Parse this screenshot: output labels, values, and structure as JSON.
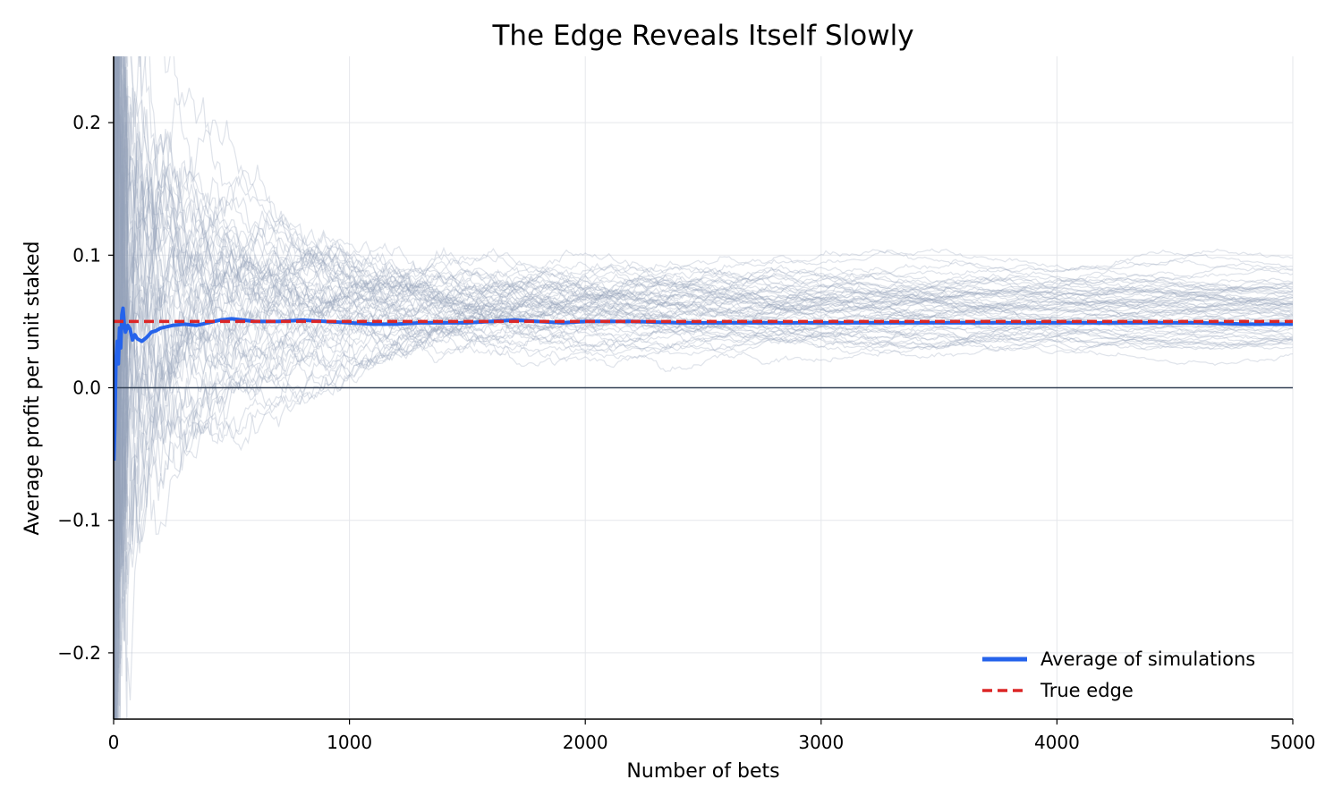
{
  "chart_data": {
    "type": "line",
    "title": "The Edge Reveals Itself Slowly",
    "xlabel": "Number of bets",
    "ylabel": "Average profit per unit staked",
    "xlim": [
      0,
      5000
    ],
    "ylim": [
      -0.25,
      0.25
    ],
    "xticks": [
      0,
      1000,
      2000,
      3000,
      4000,
      5000
    ],
    "yticks": [
      -0.2,
      -0.1,
      0.0,
      0.1,
      0.2
    ],
    "yticklabels": [
      "−0.2",
      "−0.1",
      "0.0",
      "0.1",
      "0.2"
    ],
    "grid": true,
    "legend_position": "lower-right",
    "simulation_count": 60,
    "simulation_color": "#94a3b8",
    "series": [
      {
        "name": "Average of simulations",
        "color": "#2563eb",
        "style": "solid",
        "x": [
          1,
          5,
          10,
          15,
          20,
          25,
          30,
          35,
          40,
          45,
          50,
          60,
          70,
          80,
          90,
          100,
          120,
          140,
          160,
          180,
          200,
          250,
          300,
          350,
          400,
          450,
          500,
          600,
          700,
          800,
          900,
          1000,
          1100,
          1200,
          1300,
          1400,
          1500,
          1600,
          1700,
          1800,
          1900,
          2000,
          2200,
          2400,
          2600,
          2800,
          3000,
          3200,
          3400,
          3600,
          3800,
          4000,
          4200,
          4400,
          4600,
          4800,
          5000
        ],
        "y": [
          -0.055,
          -0.03,
          0.02,
          0.035,
          0.018,
          0.045,
          0.03,
          0.055,
          0.06,
          0.048,
          0.042,
          0.047,
          0.044,
          0.036,
          0.04,
          0.037,
          0.035,
          0.038,
          0.042,
          0.043,
          0.045,
          0.047,
          0.048,
          0.047,
          0.049,
          0.051,
          0.052,
          0.05,
          0.05,
          0.051,
          0.05,
          0.049,
          0.048,
          0.048,
          0.049,
          0.049,
          0.049,
          0.05,
          0.051,
          0.05,
          0.049,
          0.05,
          0.05,
          0.049,
          0.049,
          0.049,
          0.049,
          0.049,
          0.049,
          0.049,
          0.049,
          0.049,
          0.049,
          0.049,
          0.049,
          0.048,
          0.048
        ]
      },
      {
        "name": "True edge",
        "color": "#dc2626",
        "style": "dashed",
        "x": [
          0,
          5000
        ],
        "y": [
          0.05,
          0.05
        ]
      }
    ],
    "reference_line": {
      "y": 0.0,
      "color": "#334155"
    }
  }
}
